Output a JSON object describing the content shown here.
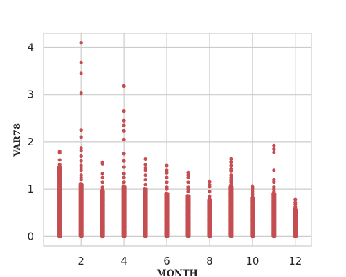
{
  "chart_data": {
    "type": "scatter",
    "title": "",
    "xlabel": "MONTH",
    "ylabel": "VAR78",
    "xlim": [
      0.25,
      12.75
    ],
    "ylim": [
      -0.2,
      4.3
    ],
    "xticks": [
      2,
      4,
      6,
      8,
      10,
      12
    ],
    "yticks": [
      0,
      1,
      2,
      3,
      4
    ],
    "grid": true,
    "marker_color": "#c44e52",
    "grid_color": "#cccccc",
    "series": [
      {
        "months": [
          1,
          2,
          3,
          4,
          5,
          6,
          7,
          8,
          9,
          10,
          11,
          12
        ],
        "dense_max": [
          1.45,
          1.1,
          0.95,
          1.05,
          1.0,
          0.9,
          0.85,
          0.75,
          1.05,
          0.8,
          0.9,
          0.55
        ],
        "outliers": [
          [
            1.8,
            1.77,
            1.62,
            1.52
          ],
          [
            4.1,
            3.68,
            3.45,
            3.03,
            2.25,
            2.1,
            1.87,
            1.82,
            1.7,
            1.6,
            1.5,
            1.45,
            1.4,
            1.3,
            1.25,
            1.2
          ],
          [
            1.57,
            1.54,
            1.33,
            1.25,
            1.15,
            1.05,
            1.0
          ],
          [
            3.18,
            2.65,
            2.45,
            2.35,
            2.23,
            2.05,
            1.75,
            1.6,
            1.47,
            1.33,
            1.25,
            1.15
          ],
          [
            1.64,
            1.52,
            1.45,
            1.4,
            1.3,
            1.2,
            1.1
          ],
          [
            1.5,
            1.4,
            1.35,
            1.25,
            1.15,
            1.05,
            1.0
          ],
          [
            1.35,
            1.3,
            1.25,
            1.15,
            1.05,
            1.0,
            0.95
          ],
          [
            1.16,
            1.1,
            1.05,
            0.95,
            0.85,
            0.8
          ],
          [
            1.64,
            1.57,
            1.5,
            1.43,
            1.38,
            1.3,
            1.25,
            1.2,
            1.15,
            1.1
          ],
          [
            1.06,
            1.03,
            1.0,
            0.95,
            0.9,
            0.85
          ],
          [
            1.92,
            1.85,
            1.78,
            1.4,
            1.2,
            1.15,
            1.05,
            1.0,
            0.95
          ],
          [
            0.78,
            0.72,
            0.68,
            0.62,
            0.58
          ]
        ]
      }
    ]
  }
}
